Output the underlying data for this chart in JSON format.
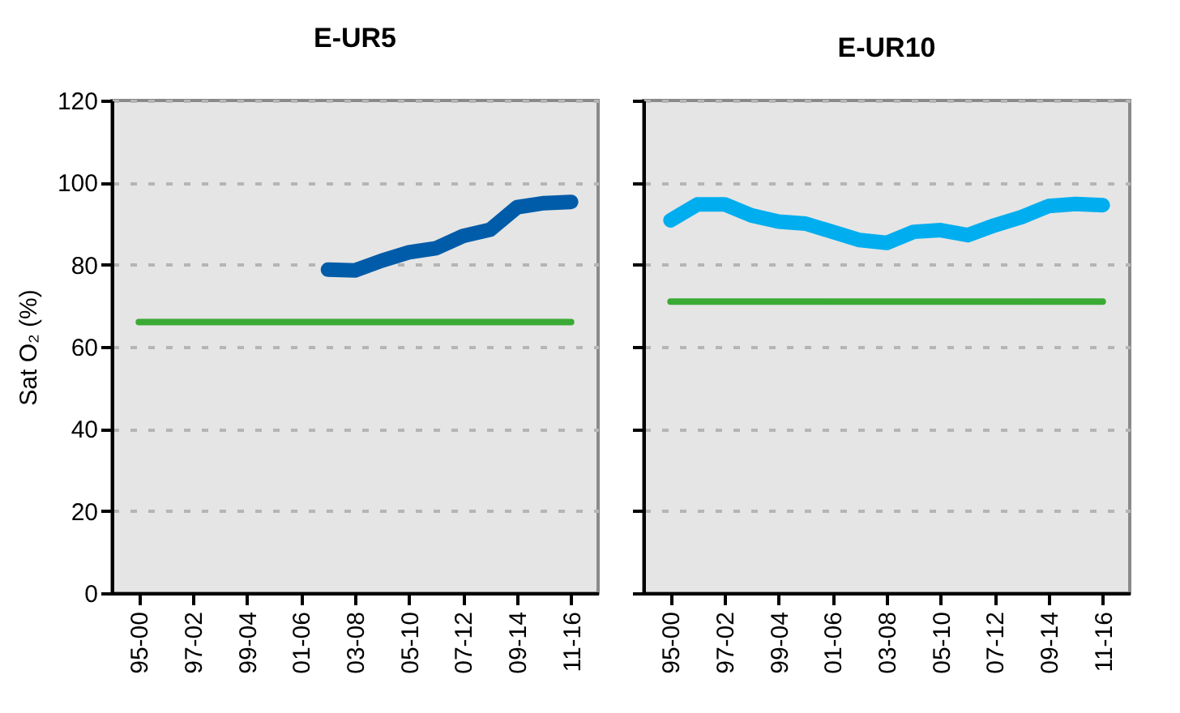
{
  "chart_data": [
    {
      "type": "line",
      "title": "E-UR5",
      "ylabel": "Sat O₂ (%)",
      "categories": [
        "95-00",
        null,
        "97-02",
        null,
        "99-04",
        null,
        "01-06",
        null,
        "03-08",
        null,
        "05-10",
        null,
        "07-12",
        null,
        "09-14",
        null,
        "11-16"
      ],
      "series": [
        {
          "color": "#005ca9",
          "values": [
            null,
            null,
            null,
            null,
            null,
            null,
            null,
            78.8,
            78.6,
            81,
            83,
            84,
            87,
            88.5,
            94,
            95,
            95.3
          ]
        }
      ],
      "ylim": [
        0,
        120
      ],
      "yticks": [
        0,
        20,
        40,
        60,
        80,
        100,
        120
      ],
      "grid": "y",
      "ref_lines": [
        {
          "axis": "y",
          "value": 66,
          "color": "#3aaa35"
        }
      ]
    },
    {
      "type": "line",
      "title": "E-UR10",
      "categories": [
        "95-00",
        null,
        "97-02",
        null,
        "99-04",
        null,
        "01-06",
        null,
        "03-08",
        null,
        "05-10",
        null,
        "07-12",
        null,
        "09-14",
        null,
        "11-16"
      ],
      "series": [
        {
          "color": "#00aeef",
          "values": [
            90.8,
            94.7,
            94.7,
            92,
            90.5,
            90,
            88,
            86,
            85.3,
            88,
            88.4,
            87.2,
            89.6,
            91.6,
            94.3,
            94.8,
            94.5
          ]
        }
      ],
      "ylim": [
        0,
        120
      ],
      "yticks": [
        0,
        20,
        40,
        60,
        80,
        100,
        120
      ],
      "grid": "y",
      "tick_labels": "x",
      "ref_lines": [
        {
          "axis": "y",
          "value": 71,
          "color": "#3aaa35"
        }
      ]
    }
  ]
}
